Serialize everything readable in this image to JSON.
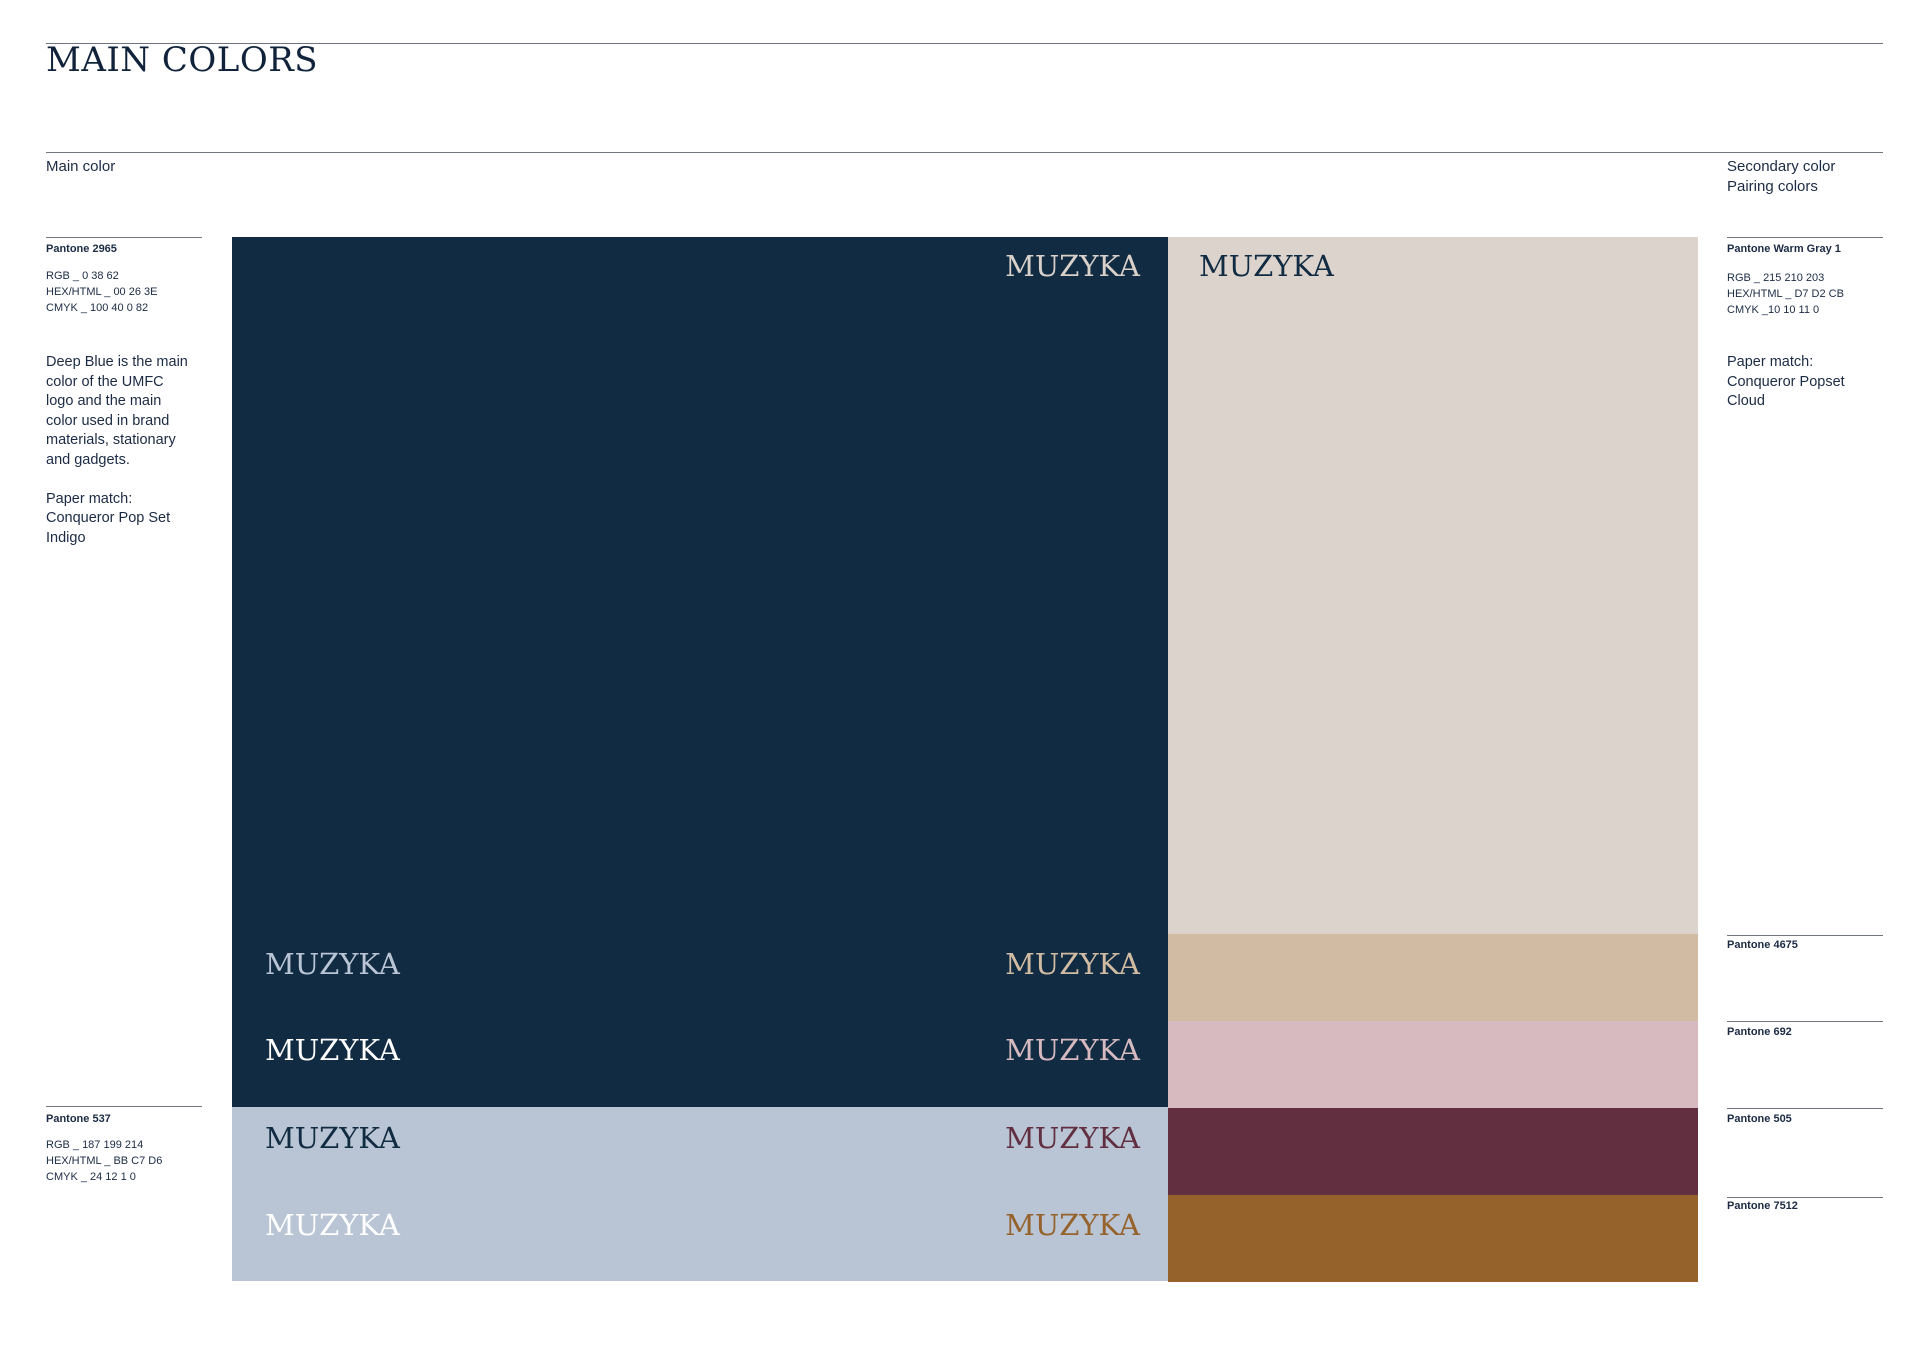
{
  "page": {
    "title": "MAIN COLORS",
    "main_label": "Main color",
    "secondary_label": "Secondary color",
    "pairing_label": "Pairing colors",
    "word": "MUZYKA"
  },
  "main": {
    "pantone": "Pantone 2965",
    "rgb": "RGB _ 0 38 62",
    "hex": "HEX/HTML _ 00 26 3E",
    "cmyk": "CMYK _ 100 40 0 82",
    "description": "Deep Blue is the main\ncolor of the UMFC\nlogo and the main\ncolor used in brand\nmaterials, stationary\nand gadgets.\n\nPaper match:\nConqueror Pop Set\nIndigo"
  },
  "secondary": {
    "pantone": "Pantone 537",
    "rgb": "RGB _ 187 199 214",
    "hex": "HEX/HTML _ BB C7 D6",
    "cmyk": "CMYK _ 24 12 1 0"
  },
  "warm_gray": {
    "pantone": "Pantone Warm Gray 1",
    "rgb": "RGB _ 215 210 203",
    "hex": "HEX/HTML _ D7 D2 CB",
    "cmyk": "CMYK _10 10 11 0",
    "description": "Paper match:\nConqueror Popset\nCloud"
  },
  "pairings": [
    {
      "pantone": "Pantone 4675"
    },
    {
      "pantone": "Pantone 692"
    },
    {
      "pantone": "Pantone 505"
    },
    {
      "pantone": "Pantone 7512"
    }
  ],
  "colors": {
    "deep_blue": "#112b42",
    "light_blue": "#b9c5d5",
    "warm_gray": "#dcd3cd",
    "tan": "#d1bca3",
    "pink": "#d7bac0",
    "wine": "#612f40",
    "ochre": "#95622b",
    "white": "#ffffff",
    "text_pale_blue": "#b9c5d5",
    "text_warm_gray": "#d9d0ca",
    "text_tan": "#d1bca3",
    "text_pink": "#d7bac0",
    "text_wine": "#612f40",
    "text_ochre": "#95622b",
    "text_deep_blue": "#112b42"
  }
}
